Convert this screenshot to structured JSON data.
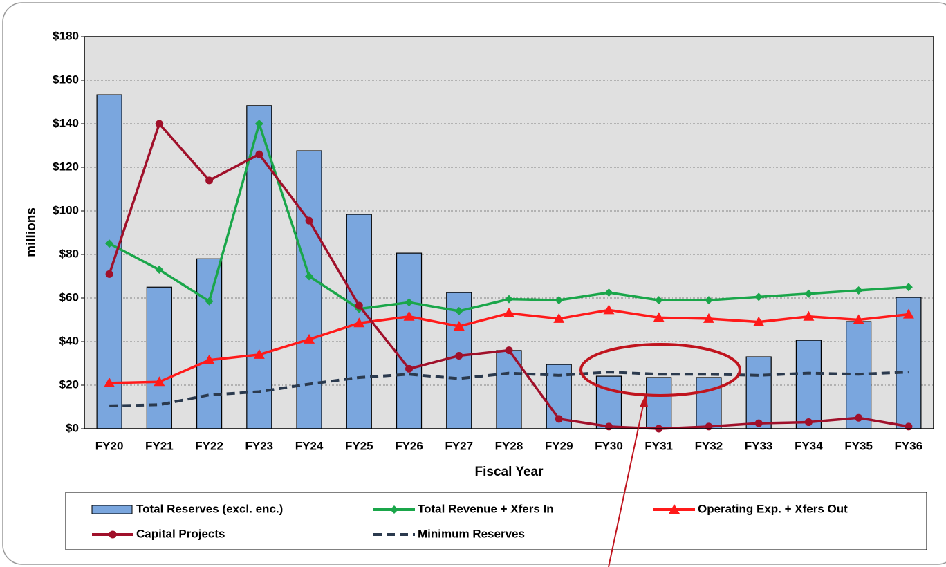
{
  "chart_data": {
    "type": "combo",
    "xlabel": "Fiscal Year",
    "ylabel": "millions",
    "categories": [
      "FY20",
      "FY21",
      "FY22",
      "FY23",
      "FY24",
      "FY25",
      "FY26",
      "FY27",
      "FY28",
      "FY29",
      "FY30",
      "FY31",
      "FY32",
      "FY33",
      "FY34",
      "FY35",
      "FY36"
    ],
    "ylim": [
      0,
      180
    ],
    "yticks": [
      {
        "value": 0,
        "label": "$0"
      },
      {
        "value": 20,
        "label": "$20"
      },
      {
        "value": 40,
        "label": "$40"
      },
      {
        "value": 60,
        "label": "$60"
      },
      {
        "value": 80,
        "label": "$80"
      },
      {
        "value": 100,
        "label": "$100"
      },
      {
        "value": 120,
        "label": "$120"
      },
      {
        "value": 140,
        "label": "$140"
      },
      {
        "value": 160,
        "label": "$160"
      },
      {
        "value": 180,
        "label": "$180"
      }
    ],
    "grid": true,
    "legend": "bottom",
    "series": [
      {
        "name": "Total Reserves (excl. enc.)",
        "type": "bar",
        "color": "#7aa6de",
        "values": [
          153.3,
          65,
          78,
          148.3,
          127.6,
          98.4,
          80.6,
          62.5,
          35.9,
          29.5,
          24.1,
          23.5,
          23.5,
          33,
          40.6,
          49.2,
          60.3
        ]
      },
      {
        "name": "Total Revenue + Xfers In",
        "type": "line",
        "color": "#1aa64a",
        "marker": "diamond",
        "values": [
          85,
          73,
          58.5,
          140,
          70,
          55,
          58,
          54,
          59.5,
          59,
          62.5,
          59,
          59,
          60.5,
          62,
          63.5,
          65
        ]
      },
      {
        "name": "Operating Exp. + Xfers Out",
        "type": "line",
        "color": "#ff1a1a",
        "marker": "triangle",
        "values": [
          21,
          21.5,
          31.5,
          34,
          41,
          48.5,
          51.5,
          47,
          53,
          50.5,
          54.5,
          51,
          50.5,
          49,
          51.5,
          50,
          52.5
        ]
      },
      {
        "name": "Capital Projects",
        "type": "line",
        "color": "#a0102a",
        "marker": "circle",
        "values": [
          71,
          140,
          114,
          126,
          95.5,
          56.5,
          27.5,
          33.5,
          36,
          4.5,
          1,
          0,
          1,
          2.5,
          3,
          5,
          1
        ]
      },
      {
        "name": "Minimum Reserves",
        "type": "line",
        "color": "#2b3a4e",
        "dash": true,
        "values": [
          10.5,
          11,
          15.5,
          17,
          20.5,
          23.5,
          25,
          23,
          25.5,
          24.5,
          26,
          25,
          25,
          24.5,
          25.5,
          25,
          26
        ]
      }
    ]
  }
}
